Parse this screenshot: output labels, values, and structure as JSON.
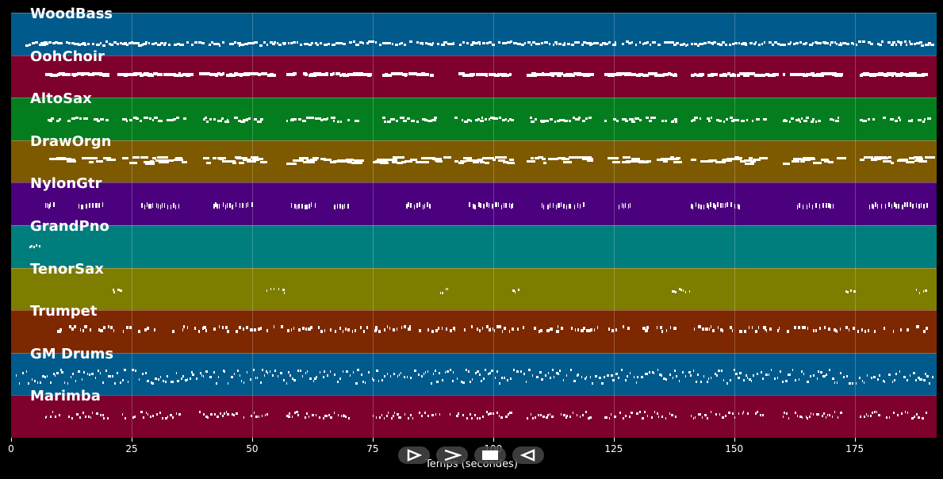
{
  "tracks": [
    {
      "name": "WoodBass",
      "color": "#005a8c"
    },
    {
      "name": "OohChoir",
      "color": "#7d002d"
    },
    {
      "name": "AltoSax",
      "color": "#037d1e"
    },
    {
      "name": "DrawOrgn",
      "color": "#7d5a00"
    },
    {
      "name": "NylonGtr",
      "color": "#4b007d"
    },
    {
      "name": "GrandPno",
      "color": "#007d7d"
    },
    {
      "name": "TenorSax",
      "color": "#7d7d00"
    },
    {
      "name": "Trumpet",
      "color": "#7d2800"
    },
    {
      "name": "GM Drums",
      "color": "#005a8c"
    },
    {
      "name": "Marimba",
      "color": "#7d002d"
    }
  ],
  "axis": {
    "xlabel": "Temps (secondes)",
    "ticks": [
      "0",
      "25",
      "50",
      "75",
      "100",
      "125",
      "150",
      "175"
    ],
    "xmin": 0,
    "xmax": 192
  },
  "controls": [
    {
      "name": "play-outline-icon"
    },
    {
      "name": "forward-icon"
    },
    {
      "name": "stop-icon"
    },
    {
      "name": "rewind-icon"
    }
  ]
}
